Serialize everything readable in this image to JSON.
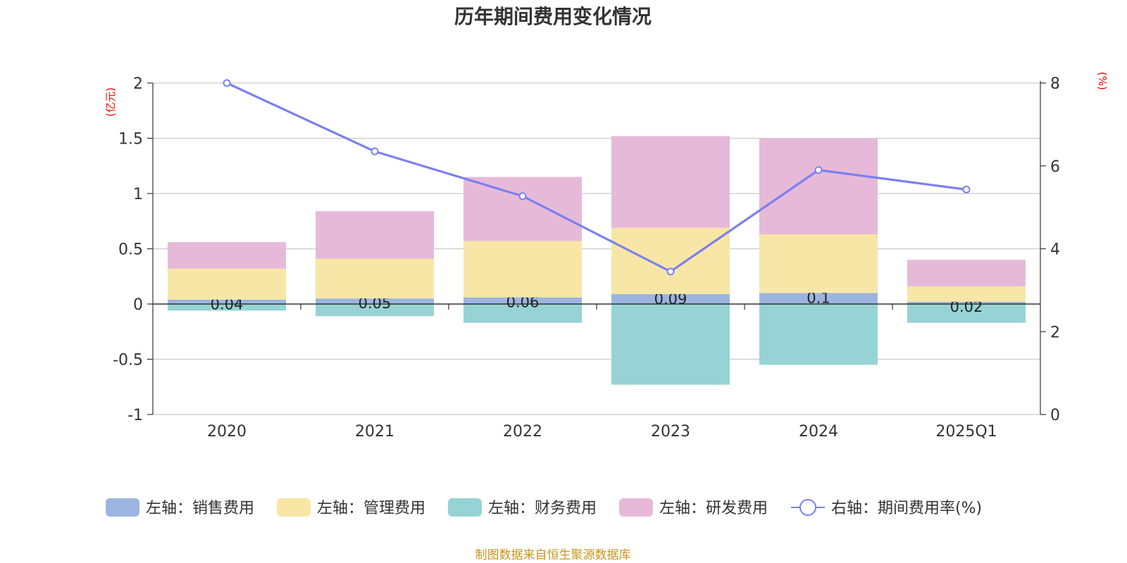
{
  "chart_data": {
    "type": "bar",
    "title": "历年期间费用变化情况",
    "categories": [
      "2020",
      "2021",
      "2022",
      "2023",
      "2024",
      "2025Q1"
    ],
    "left_axis": {
      "unit": "(亿元)",
      "ylim": [
        -1,
        2
      ],
      "ticks": [
        "2",
        "1.5",
        "1",
        "0.5",
        "0",
        "-0.5",
        "-1"
      ],
      "tick_values": [
        2,
        1.5,
        1,
        0.5,
        0,
        -0.5,
        -1
      ]
    },
    "right_axis": {
      "unit": "(%)",
      "ylim": [
        0,
        8
      ],
      "ticks": [
        "8",
        "6",
        "4",
        "2",
        "0"
      ],
      "tick_values": [
        8,
        6,
        4,
        2,
        0
      ]
    },
    "series": [
      {
        "name": "销售费用",
        "legend": "左轴：销售费用",
        "color": "#9bb5e0",
        "values": [
          0.04,
          0.05,
          0.06,
          0.09,
          0.1,
          0.02
        ],
        "labels": [
          "0.04",
          "0.05",
          "0.06",
          "0.09",
          "0.1",
          "0.02"
        ]
      },
      {
        "name": "管理费用",
        "legend": "左轴：管理费用",
        "color": "#f7e6a6",
        "values": [
          0.28,
          0.36,
          0.51,
          0.6,
          0.53,
          0.14
        ]
      },
      {
        "name": "财务费用",
        "legend": "左轴：财务费用",
        "color": "#97d3d4",
        "values": [
          -0.06,
          -0.11,
          -0.17,
          -0.73,
          -0.55,
          -0.17
        ]
      },
      {
        "name": "研发费用",
        "legend": "左轴：研发费用",
        "color": "#e7b9d9",
        "values": [
          0.24,
          0.43,
          0.58,
          0.83,
          0.87,
          0.24
        ]
      },
      {
        "name": "期间费用率",
        "legend": "右轴：期间费用率(%)",
        "color": "#7b80ef",
        "type": "line",
        "axis": "right",
        "values": [
          8.0,
          6.35,
          5.27,
          3.45,
          5.9,
          5.43
        ]
      }
    ],
    "source": "制图数据来自恒生聚源数据库"
  }
}
